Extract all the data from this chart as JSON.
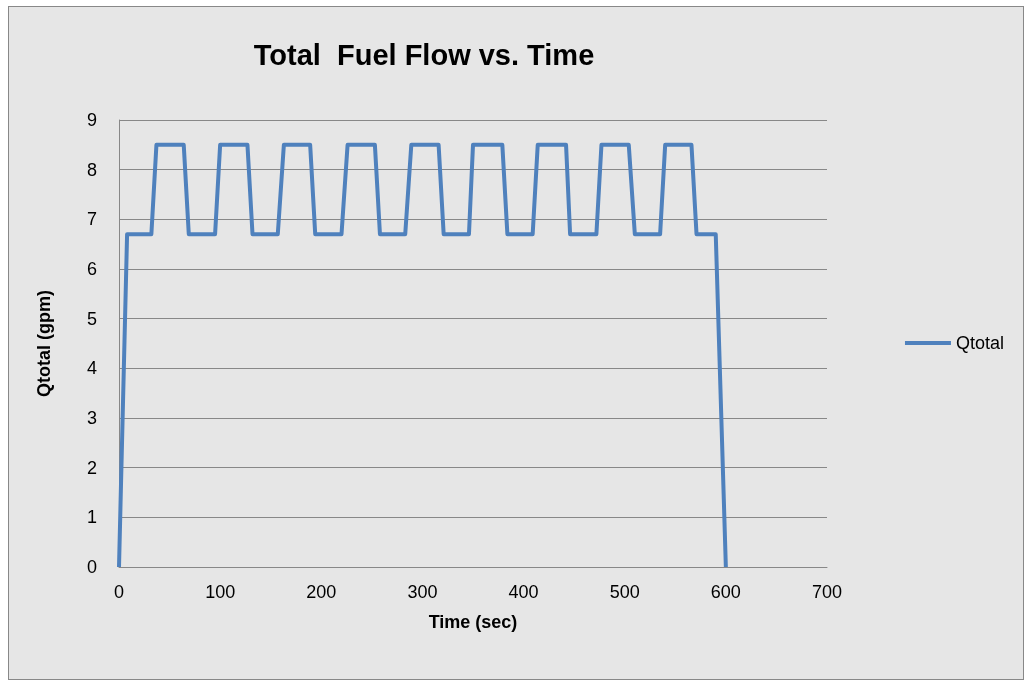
{
  "chart_data": {
    "type": "line",
    "title": "Total  Fuel Flow vs. Time",
    "xlabel": "Time (sec)",
    "ylabel": "Qtotal (gpm)",
    "series": [
      {
        "name": "Qtotal",
        "color": "#4f81bd",
        "x": [
          0,
          8,
          32,
          37,
          64,
          69,
          95,
          100,
          127,
          132,
          157,
          163,
          189,
          194,
          220,
          226,
          253,
          258,
          283,
          289,
          316,
          321,
          346,
          350,
          379,
          384,
          409,
          414,
          442,
          446,
          472,
          477,
          504,
          510,
          535,
          540,
          566,
          571,
          590,
          600
        ],
        "values": [
          0,
          6.7,
          6.7,
          8.5,
          8.5,
          6.7,
          6.7,
          8.5,
          8.5,
          6.7,
          6.7,
          8.5,
          8.5,
          6.7,
          6.7,
          8.5,
          8.5,
          6.7,
          6.7,
          8.5,
          8.5,
          6.7,
          6.7,
          8.5,
          8.5,
          6.7,
          6.7,
          8.5,
          8.5,
          6.7,
          6.7,
          8.5,
          8.5,
          6.7,
          6.7,
          8.5,
          8.5,
          6.7,
          6.7,
          0
        ]
      }
    ],
    "xlim": [
      0,
      700
    ],
    "xticks": [
      0,
      100,
      200,
      300,
      400,
      500,
      600,
      700
    ],
    "ylim": [
      0,
      9
    ],
    "yticks": [
      0,
      1,
      2,
      3,
      4,
      5,
      6,
      7,
      8,
      9
    ],
    "grid": "y",
    "legend": "right",
    "marker": "none",
    "line_style": "solid"
  }
}
